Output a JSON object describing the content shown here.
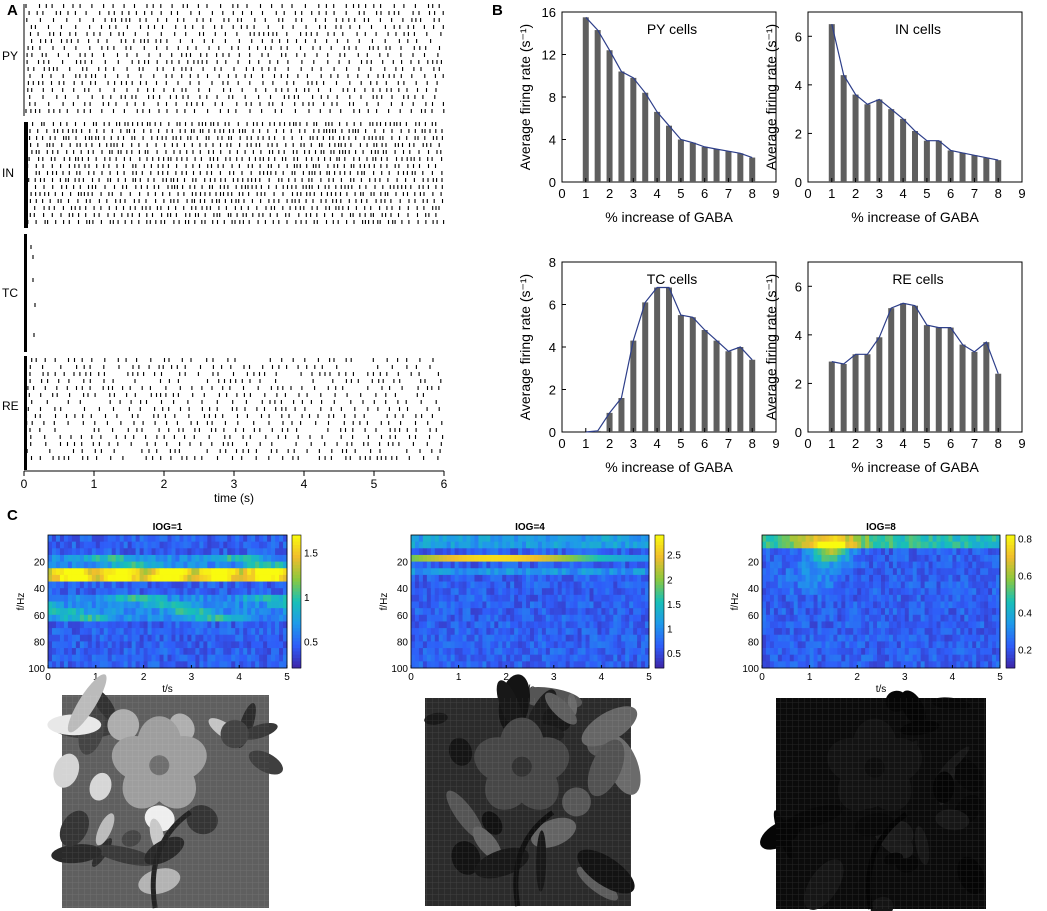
{
  "panel_labels": {
    "a": "A",
    "b": "B",
    "c": "C"
  },
  "raster": {
    "rows": [
      "PY",
      "IN",
      "TC",
      "RE"
    ],
    "x_ticks": [
      "0",
      "1",
      "2",
      "3",
      "4",
      "5",
      "6"
    ],
    "xlabel": "time (s)"
  },
  "chart_data": [
    {
      "type": "bar",
      "title": "PY cells",
      "x": [
        1,
        1.5,
        2,
        2.5,
        3,
        3.5,
        4,
        4.5,
        5,
        5.5,
        6,
        6.5,
        7,
        7.5,
        8
      ],
      "values": [
        15.5,
        14.3,
        12.4,
        10.4,
        9.8,
        8.4,
        6.6,
        5.3,
        4.0,
        3.7,
        3.3,
        3.1,
        2.9,
        2.7,
        2.3
      ],
      "xlabel": "% increase of GABA",
      "ylabel": "Average firing rate (s⁻¹)",
      "xlim": [
        0,
        9
      ],
      "ylim": [
        0,
        16
      ],
      "xticks": [
        0,
        1,
        2,
        3,
        4,
        5,
        6,
        7,
        8,
        9
      ],
      "yticks": [
        0,
        4,
        8,
        12,
        16
      ]
    },
    {
      "type": "bar",
      "title": "IN cells",
      "x": [
        1,
        1.5,
        2,
        2.5,
        3,
        3.5,
        4,
        4.5,
        5,
        5.5,
        6,
        6.5,
        7,
        7.5,
        8
      ],
      "values": [
        6.5,
        4.4,
        3.6,
        3.2,
        3.4,
        3.0,
        2.6,
        2.1,
        1.7,
        1.7,
        1.3,
        1.2,
        1.1,
        1.0,
        0.9
      ],
      "xlabel": "% increase of GABA",
      "ylabel": "Average firing rate (s⁻¹)",
      "xlim": [
        0,
        9
      ],
      "ylim": [
        0,
        7
      ],
      "xticks": [
        0,
        1,
        2,
        3,
        4,
        5,
        6,
        7,
        8,
        9
      ],
      "yticks": [
        0,
        2,
        4,
        6
      ]
    },
    {
      "type": "bar",
      "title": "TC cells",
      "x": [
        1,
        1.5,
        2,
        2.5,
        3,
        3.5,
        4,
        4.5,
        5,
        5.5,
        6,
        6.5,
        7,
        7.5,
        8
      ],
      "values": [
        0,
        0.05,
        0.9,
        1.6,
        4.3,
        6.1,
        6.8,
        6.8,
        5.5,
        5.4,
        4.8,
        4.3,
        3.8,
        4.0,
        3.4
      ],
      "xlabel": "% increase of GABA",
      "ylabel": "Average firing rate (s⁻¹)",
      "xlim": [
        0,
        9
      ],
      "ylim": [
        0,
        8
      ],
      "xticks": [
        0,
        1,
        2,
        3,
        4,
        5,
        6,
        7,
        8,
        9
      ],
      "yticks": [
        0,
        2,
        4,
        6,
        8
      ]
    },
    {
      "type": "bar",
      "title": "RE cells",
      "x": [
        1,
        1.5,
        2,
        2.5,
        3,
        3.5,
        4,
        4.5,
        5,
        5.5,
        6,
        6.5,
        7,
        7.5,
        8
      ],
      "values": [
        2.9,
        2.8,
        3.2,
        3.2,
        3.9,
        5.1,
        5.3,
        5.2,
        4.4,
        4.3,
        4.3,
        3.6,
        3.3,
        3.7,
        2.4
      ],
      "xlabel": "% increase of GABA",
      "ylabel": "Average firing rate (s⁻¹)",
      "xlim": [
        0,
        9
      ],
      "ylim": [
        0,
        7
      ],
      "xticks": [
        0,
        1,
        2,
        3,
        4,
        5,
        6,
        7,
        8,
        9
      ],
      "yticks": [
        0,
        2,
        4,
        6
      ]
    },
    {
      "type": "heatmap",
      "title": "IOG=1",
      "xlabel": "t/s",
      "ylabel": "f/Hz",
      "xlim": [
        0,
        5
      ],
      "ylim": [
        100,
        0
      ],
      "xticks": [
        0,
        1,
        2,
        3,
        4,
        5
      ],
      "yticks": [
        20,
        40,
        60,
        80,
        100
      ],
      "colorbar_ticks": [
        "0.5",
        "1",
        "1.5"
      ],
      "colorbar_range": [
        0.2,
        1.7
      ]
    },
    {
      "type": "heatmap",
      "title": "IOG=4",
      "xlabel": "t/s",
      "ylabel": "f/Hz",
      "xlim": [
        0,
        5
      ],
      "ylim": [
        100,
        0
      ],
      "xticks": [
        0,
        1,
        2,
        3,
        4,
        5
      ],
      "yticks": [
        20,
        40,
        60,
        80,
        100
      ],
      "colorbar_ticks": [
        "0.5",
        "1",
        "1.5",
        "2",
        "2.5"
      ],
      "colorbar_range": [
        0.2,
        2.9
      ]
    },
    {
      "type": "heatmap",
      "title": "IOG=8",
      "xlabel": "t/s",
      "ylabel": "f/Hz",
      "xlim": [
        0,
        5
      ],
      "ylim": [
        100,
        0
      ],
      "xticks": [
        0,
        1,
        2,
        3,
        4,
        5
      ],
      "yticks": [
        20,
        40,
        60,
        80,
        100
      ],
      "colorbar_ticks": [
        "0.2",
        "0.4",
        "0.6",
        "0.8"
      ],
      "colorbar_range": [
        0.1,
        0.82
      ]
    }
  ],
  "colors": {
    "bar_fill": "#5f5f5f",
    "line": "#2e3f8a",
    "colormap": [
      "#3e26a8",
      "#2f5df9",
      "#1f9aea",
      "#18c0b7",
      "#8cc83e",
      "#f0bd2d",
      "#f9fb0e"
    ]
  },
  "images": [
    {
      "brightness": 1.0
    },
    {
      "brightness": 0.45
    },
    {
      "brightness": 0.12
    }
  ]
}
